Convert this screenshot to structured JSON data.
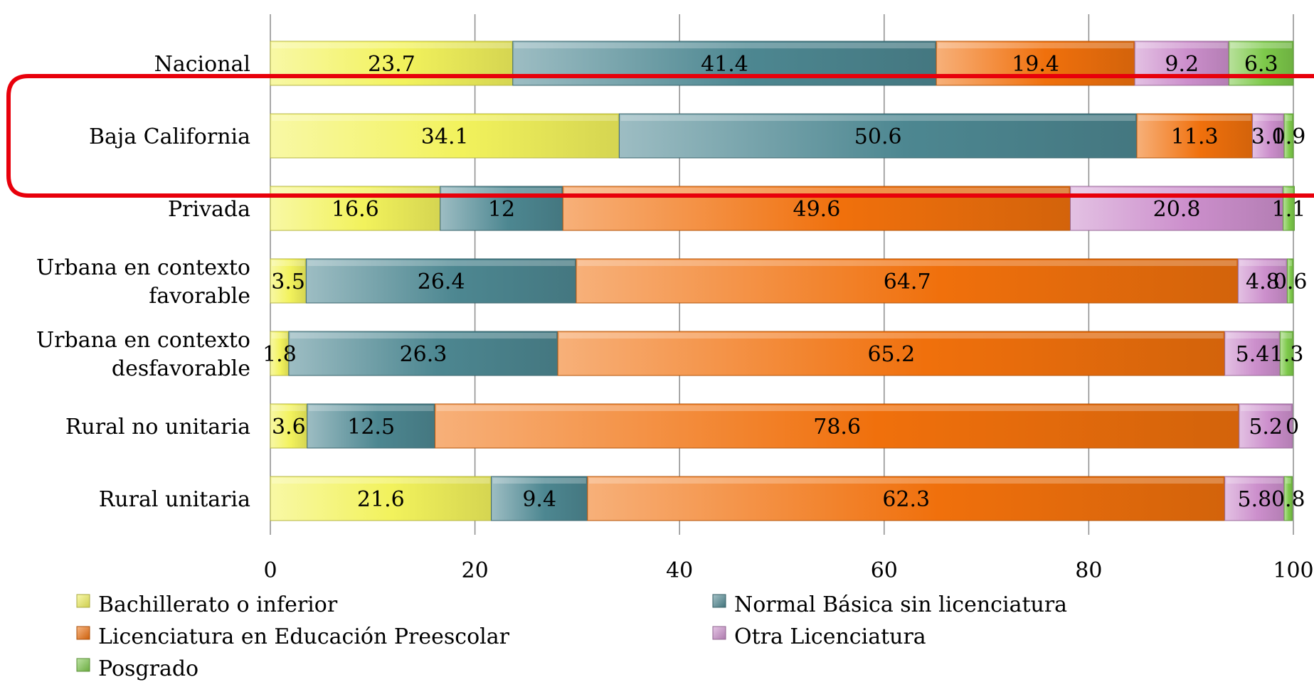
{
  "chart_data": {
    "type": "bar",
    "orientation": "horizontal",
    "stacked": true,
    "title": "",
    "xlabel": "",
    "ylabel": "",
    "xlim": [
      0,
      100
    ],
    "xticks": [
      "0",
      "20",
      "40",
      "60",
      "80",
      "100"
    ],
    "grid": "vertical",
    "legend_position": "bottom",
    "highlighted_category": "Baja California",
    "highlight_color": "#e8000b",
    "categories": [
      [
        "Nacional"
      ],
      [
        "Baja California"
      ],
      [
        "Privada"
      ],
      [
        "Urbana en contexto",
        "favorable"
      ],
      [
        "Urbana en contexto",
        "desfavorable"
      ],
      [
        "Rural no unitaria"
      ],
      [
        "Rural unitaria"
      ]
    ],
    "series": [
      {
        "name": "Bachillerato o inferior",
        "color": "#f2f25c",
        "values": [
          23.7,
          34.1,
          16.6,
          3.5,
          1.8,
          3.6,
          21.6
        ]
      },
      {
        "name": "Normal Básica sin licenciatura",
        "color": "#4d8791",
        "values": [
          41.4,
          50.6,
          12,
          26.4,
          26.3,
          12.5,
          9.4
        ]
      },
      {
        "name": "Licenciatura en Educación Preescolar",
        "color": "#f0700c",
        "values": [
          19.4,
          11.3,
          49.6,
          64.7,
          65.2,
          78.6,
          62.3
        ]
      },
      {
        "name": "Otra Licenciatura",
        "color": "#cc8fcc",
        "values": [
          9.2,
          3.1,
          20.8,
          4.8,
          5.4,
          5.2,
          5.8
        ]
      },
      {
        "name": "Posgrado",
        "color": "#7dc94a",
        "values": [
          6.3,
          0.9,
          1.1,
          0.6,
          1.3,
          0,
          0.8
        ]
      }
    ]
  }
}
